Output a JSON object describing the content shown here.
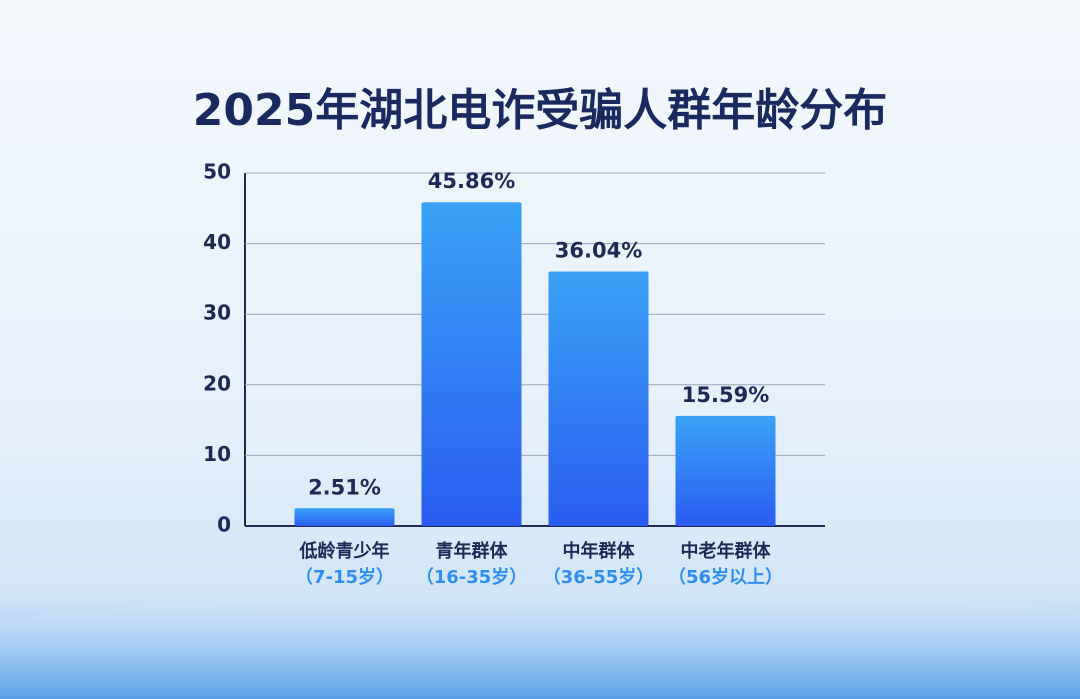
{
  "chart_data": {
    "type": "bar",
    "title": "2025年湖北电诈受骗人群年龄分布",
    "categories": [
      "低龄青少年",
      "青年群体",
      "中年群体",
      "中老年群体"
    ],
    "category_notes": [
      "（7-15岁）",
      "（16-35岁）",
      "（36-55岁）",
      "（56岁以上）"
    ],
    "values": [
      2.51,
      45.86,
      36.04,
      15.59
    ],
    "value_labels": [
      "2.51%",
      "45.86%",
      "36.04%",
      "15.59%"
    ],
    "color": "#2f7ff2",
    "ylim": [
      0,
      50
    ],
    "yticks": [
      0,
      10,
      20,
      30,
      40,
      50
    ],
    "grid": true
  }
}
